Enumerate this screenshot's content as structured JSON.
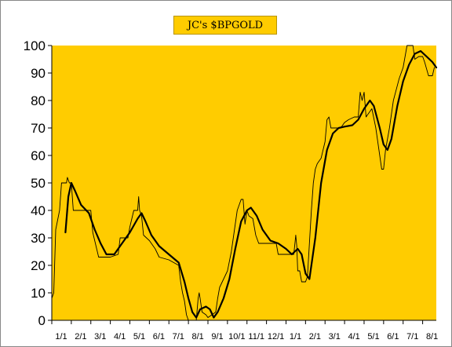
{
  "chart_data": {
    "type": "line",
    "title": "JC's $BPGOLD",
    "xlabel": "",
    "ylabel": "",
    "ylim": [
      0,
      100
    ],
    "y_ticks": [
      0,
      10,
      20,
      30,
      40,
      50,
      60,
      70,
      80,
      90,
      100
    ],
    "x_tick_labels": [
      "1/1",
      "2/1",
      "3/1",
      "4/1",
      "5/1",
      "6/1",
      "7/1",
      "8/1",
      "9/1",
      "10/1",
      "11/1",
      "12/1",
      "1/1",
      "2/1",
      "3/1",
      "4/1",
      "5/1",
      "6/1",
      "7/1",
      "8/1"
    ],
    "x_range": [
      0,
      19.7
    ],
    "grid": false,
    "plot_background": "#ffcc00",
    "series": [
      {
        "style": "thin",
        "color": "#000000",
        "points": [
          [
            0.0,
            8
          ],
          [
            0.1,
            10
          ],
          [
            0.2,
            33
          ],
          [
            0.4,
            40
          ],
          [
            0.5,
            50
          ],
          [
            0.75,
            50
          ],
          [
            0.8,
            52
          ],
          [
            0.9,
            50
          ],
          [
            1.0,
            50
          ],
          [
            1.1,
            40
          ],
          [
            1.5,
            40
          ],
          [
            2.0,
            40
          ],
          [
            2.1,
            32
          ],
          [
            2.4,
            23
          ],
          [
            3.0,
            23
          ],
          [
            3.4,
            24
          ],
          [
            3.5,
            30
          ],
          [
            3.9,
            30
          ],
          [
            4.0,
            34
          ],
          [
            4.2,
            40
          ],
          [
            4.4,
            40
          ],
          [
            4.45,
            45
          ],
          [
            4.5,
            40
          ],
          [
            4.6,
            38
          ],
          [
            4.7,
            31
          ],
          [
            5.0,
            29
          ],
          [
            5.3,
            26
          ],
          [
            5.5,
            23
          ],
          [
            6.0,
            22
          ],
          [
            6.5,
            20
          ],
          [
            6.6,
            14
          ],
          [
            6.7,
            10
          ],
          [
            6.8,
            7
          ],
          [
            6.9,
            2
          ],
          [
            7.0,
            0
          ],
          [
            7.4,
            0
          ],
          [
            7.5,
            8
          ],
          [
            7.55,
            10
          ],
          [
            7.6,
            8
          ],
          [
            7.7,
            3
          ],
          [
            7.9,
            2
          ],
          [
            8.0,
            1
          ],
          [
            8.4,
            3
          ],
          [
            8.5,
            8
          ],
          [
            8.6,
            12
          ],
          [
            8.8,
            15
          ],
          [
            9.0,
            18
          ],
          [
            9.2,
            25
          ],
          [
            9.5,
            40
          ],
          [
            9.7,
            44
          ],
          [
            9.8,
            44
          ],
          [
            9.9,
            35
          ],
          [
            10.0,
            40
          ],
          [
            10.1,
            38
          ],
          [
            10.3,
            37
          ],
          [
            10.45,
            31
          ],
          [
            10.6,
            28
          ],
          [
            11.5,
            28
          ],
          [
            11.6,
            24
          ],
          [
            12.0,
            24
          ],
          [
            12.4,
            24
          ],
          [
            12.5,
            31
          ],
          [
            12.55,
            27
          ],
          [
            12.6,
            18
          ],
          [
            12.7,
            18
          ],
          [
            12.8,
            14
          ],
          [
            13.0,
            14
          ],
          [
            13.1,
            16
          ],
          [
            13.3,
            40
          ],
          [
            13.4,
            50
          ],
          [
            13.5,
            55
          ],
          [
            13.6,
            57
          ],
          [
            13.8,
            59
          ],
          [
            14.0,
            65
          ],
          [
            14.1,
            73
          ],
          [
            14.2,
            74
          ],
          [
            14.3,
            70
          ],
          [
            14.5,
            70
          ],
          [
            14.8,
            70
          ],
          [
            15.0,
            72
          ],
          [
            15.2,
            73
          ],
          [
            15.5,
            74
          ],
          [
            15.7,
            74
          ],
          [
            15.8,
            83
          ],
          [
            15.9,
            80
          ],
          [
            16.0,
            83
          ],
          [
            16.1,
            74
          ],
          [
            16.2,
            75
          ],
          [
            16.4,
            77
          ],
          [
            16.6,
            70
          ],
          [
            16.8,
            60
          ],
          [
            16.9,
            55
          ],
          [
            17.0,
            55
          ],
          [
            17.1,
            62
          ],
          [
            17.3,
            70
          ],
          [
            17.5,
            80
          ],
          [
            17.8,
            88
          ],
          [
            18.0,
            92
          ],
          [
            18.2,
            100
          ],
          [
            18.5,
            100
          ],
          [
            18.6,
            95
          ],
          [
            18.8,
            96
          ],
          [
            19.0,
            96
          ],
          [
            19.1,
            94
          ],
          [
            19.3,
            89
          ],
          [
            19.5,
            89
          ],
          [
            19.6,
            92
          ]
        ]
      },
      {
        "style": "thick",
        "color": "#000000",
        "points": [
          [
            0.7,
            32
          ],
          [
            0.85,
            45
          ],
          [
            1.0,
            50
          ],
          [
            1.2,
            47
          ],
          [
            1.5,
            42
          ],
          [
            1.9,
            39
          ],
          [
            2.2,
            33
          ],
          [
            2.5,
            28
          ],
          [
            2.8,
            24
          ],
          [
            3.2,
            24
          ],
          [
            3.6,
            28
          ],
          [
            4.0,
            32
          ],
          [
            4.4,
            37
          ],
          [
            4.6,
            39
          ],
          [
            4.8,
            36
          ],
          [
            5.1,
            31
          ],
          [
            5.5,
            27
          ],
          [
            6.0,
            24
          ],
          [
            6.5,
            21
          ],
          [
            6.8,
            14
          ],
          [
            7.0,
            8
          ],
          [
            7.2,
            3
          ],
          [
            7.4,
            1
          ],
          [
            7.6,
            4
          ],
          [
            7.9,
            5
          ],
          [
            8.1,
            4
          ],
          [
            8.3,
            1
          ],
          [
            8.5,
            3
          ],
          [
            8.8,
            8
          ],
          [
            9.1,
            15
          ],
          [
            9.4,
            26
          ],
          [
            9.7,
            36
          ],
          [
            10.0,
            40
          ],
          [
            10.2,
            41
          ],
          [
            10.5,
            38
          ],
          [
            10.8,
            33
          ],
          [
            11.2,
            29
          ],
          [
            11.6,
            28
          ],
          [
            12.0,
            26
          ],
          [
            12.3,
            24
          ],
          [
            12.6,
            26
          ],
          [
            12.8,
            24
          ],
          [
            13.0,
            17
          ],
          [
            13.2,
            15
          ],
          [
            13.5,
            30
          ],
          [
            13.8,
            50
          ],
          [
            14.1,
            62
          ],
          [
            14.4,
            68
          ],
          [
            14.7,
            70
          ],
          [
            15.0,
            70.5
          ],
          [
            15.4,
            71
          ],
          [
            15.7,
            73
          ],
          [
            16.0,
            77
          ],
          [
            16.3,
            80
          ],
          [
            16.5,
            78
          ],
          [
            16.8,
            70
          ],
          [
            17.0,
            64
          ],
          [
            17.2,
            62
          ],
          [
            17.4,
            66
          ],
          [
            17.7,
            78
          ],
          [
            18.0,
            87
          ],
          [
            18.3,
            93
          ],
          [
            18.6,
            97
          ],
          [
            18.9,
            98
          ],
          [
            19.2,
            96
          ],
          [
            19.5,
            94
          ],
          [
            19.7,
            92
          ]
        ]
      }
    ]
  }
}
